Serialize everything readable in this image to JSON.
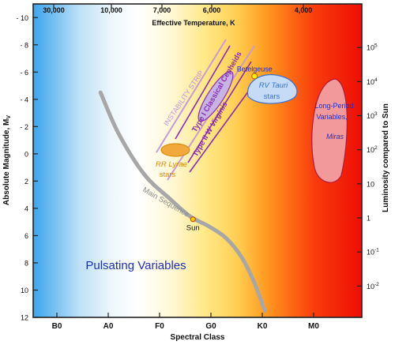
{
  "chart_data": {
    "type": "scatter",
    "title": "",
    "xlabel": "Spectral Class",
    "ylabel": "Absolute Magnitude, M",
    "ylabel_sub": "V",
    "y2label": "Luminosity compared to Sun",
    "x2label": "Effective Temperature, K",
    "ylim": [
      12,
      -11
    ],
    "spectral_classes": [
      "B0",
      "A0",
      "F0",
      "G0",
      "K0",
      "M0"
    ],
    "temperatures": [
      "30,000",
      "10,000",
      "7,000",
      "6,000",
      "4,000"
    ],
    "magnitude_ticks": [
      {
        "value": -10,
        "label": "- 10"
      },
      {
        "value": -8,
        "label": "- 8"
      },
      {
        "value": -6,
        "label": "- 6"
      },
      {
        "value": -4,
        "label": "- 4"
      },
      {
        "value": -2,
        "label": "- 2"
      },
      {
        "value": 0,
        "label": "0"
      },
      {
        "value": 2,
        "label": "2"
      },
      {
        "value": 4,
        "label": "4"
      },
      {
        "value": 6,
        "label": "6"
      },
      {
        "value": 8,
        "label": "8"
      },
      {
        "value": 10,
        "label": "10"
      },
      {
        "value": 12,
        "label": "12"
      }
    ],
    "luminosity_ticks": [
      {
        "mag": -7.8,
        "base": "10",
        "exp": "5"
      },
      {
        "mag": -5.3,
        "base": "10",
        "exp": "4"
      },
      {
        "mag": -2.8,
        "base": "10",
        "exp": "3"
      },
      {
        "mag": -0.3,
        "base": "10",
        "exp": "2"
      },
      {
        "mag": 2.2,
        "base": "10",
        "exp": ""
      },
      {
        "mag": 4.7,
        "base": "1",
        "exp": ""
      },
      {
        "mag": 7.2,
        "base": "10",
        "exp": "-1"
      },
      {
        "mag": 9.7,
        "base": "10",
        "exp": "-2"
      }
    ],
    "main_sequence": {
      "name": "Main Sequence",
      "points": [
        [
          -1.15,
          -4.5
        ],
        [
          -0.8,
          -1.5
        ],
        [
          -0.3,
          1.5
        ],
        [
          0.2,
          3.3
        ],
        [
          0.6,
          4.6
        ],
        [
          0.95,
          5.3
        ],
        [
          1.3,
          6.2
        ],
        [
          1.6,
          7.6
        ],
        [
          1.85,
          9.5
        ],
        [
          2.05,
          11.5
        ]
      ]
    },
    "sun": {
      "label": "Sun",
      "x": 0.65,
      "mag": 4.8
    },
    "betelgeuse": {
      "label": "Betelgeuse",
      "x": 1.85,
      "mag": -5.7
    },
    "instability_strip": {
      "label": "INSTABILITY STRIP"
    },
    "regions": [
      {
        "name": "Type I Classical Cepheids",
        "type_label": "Type I",
        "star_label": "Classical Cepheids",
        "color": "#8a2bb5",
        "fill": "#c8b4e4"
      },
      {
        "name": "Type II W Virginis",
        "type_label": "Type II",
        "star_label": "W Virginis",
        "color": "#8a2bb5"
      },
      {
        "name": "RV Tauri stars",
        "line1": "RV Tauri",
        "line2": "stars",
        "color": "#3b6fd4",
        "fill": "#c6dcf6"
      },
      {
        "name": "RR Lyrae stars",
        "line1": "RR Lyrae",
        "line2": "stars",
        "color": "#e08a00",
        "fill": "#f0a93a"
      },
      {
        "name": "Long-Period Variables, Miras",
        "line1": "Long-Period",
        "line2": "Variables,",
        "line3": "Miras",
        "color": "#1f2fcc",
        "fill": "#f2999b"
      }
    ],
    "annotation": "Pulsating Variables"
  }
}
